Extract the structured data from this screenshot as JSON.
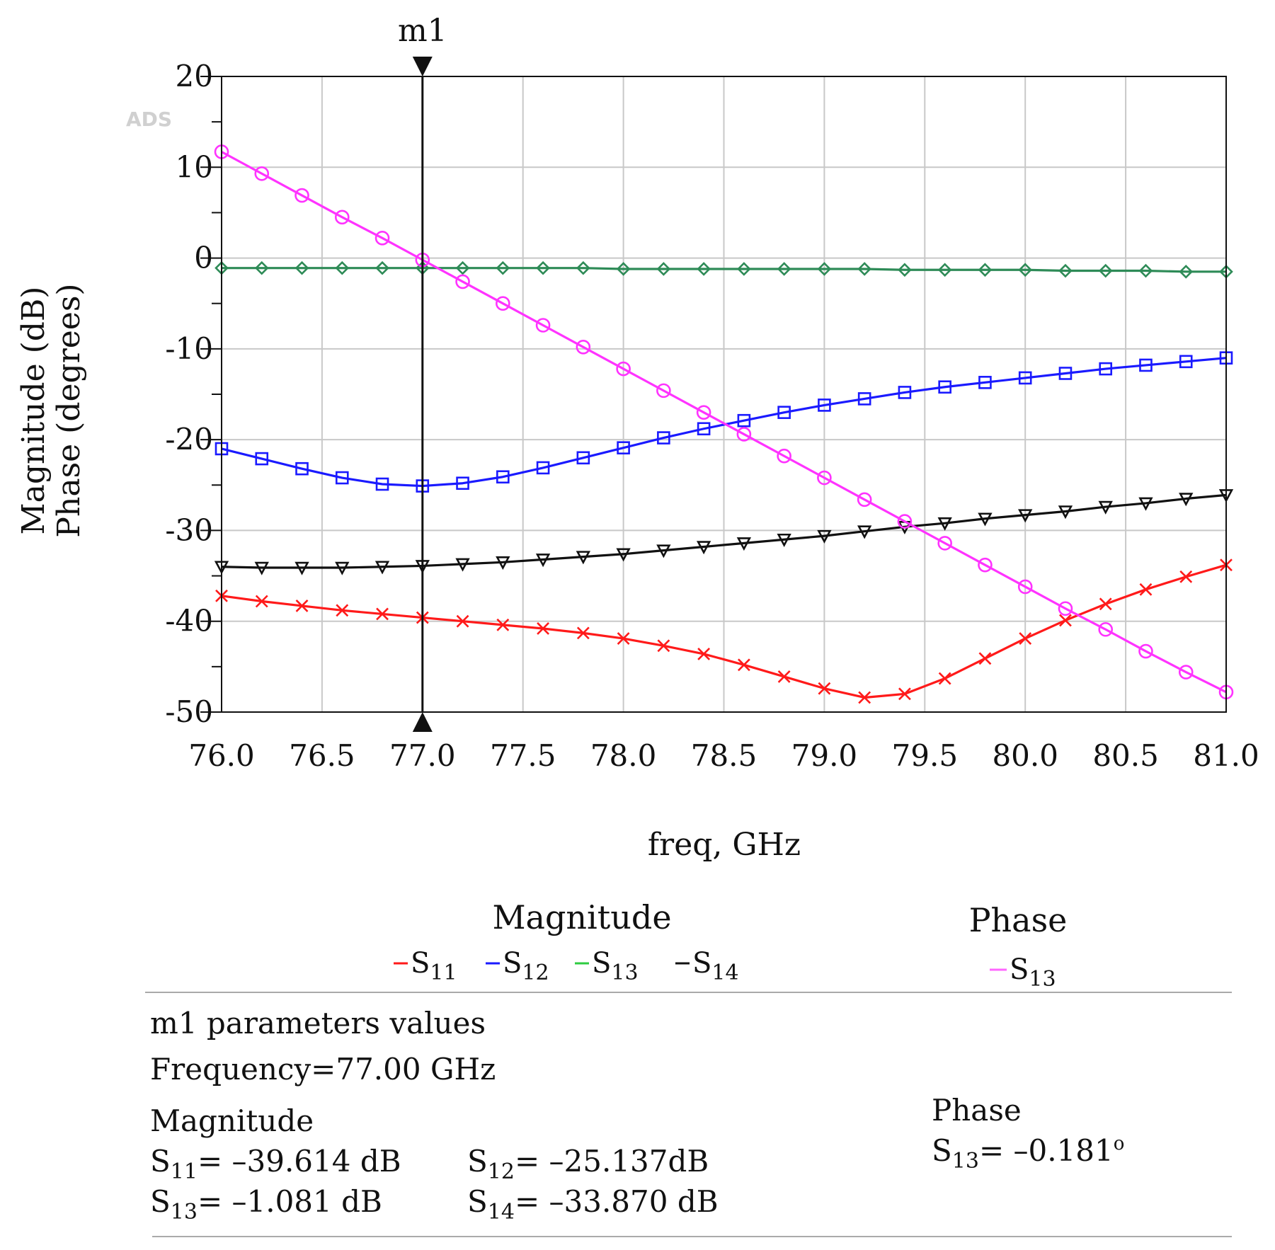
{
  "chart_data": {
    "type": "line",
    "watermark": "ADS",
    "xlabel": "freq, GHz",
    "ylabel_lines": [
      "Magnitude (dB)",
      "Phase (degrees)"
    ],
    "xlim": [
      76.0,
      81.0
    ],
    "ylim": [
      -50,
      20
    ],
    "x_ticks": [
      "76.0",
      "76.5",
      "77.0",
      "77.5",
      "78.0",
      "78.5",
      "79.0",
      "79.5",
      "80.0",
      "80.5",
      "81.0"
    ],
    "y_ticks": [
      "20",
      "10",
      "0",
      "-10",
      "-20",
      "-30",
      "-40",
      "-50"
    ],
    "grid": true,
    "x": [
      76.0,
      76.2,
      76.4,
      76.6,
      76.8,
      77.0,
      77.2,
      77.4,
      77.6,
      77.8,
      78.0,
      78.2,
      78.4,
      78.6,
      78.8,
      79.0,
      79.2,
      79.4,
      79.6,
      79.8,
      80.0,
      80.2,
      80.4,
      80.6,
      80.8,
      81.0
    ],
    "series": [
      {
        "name": "S11",
        "group": "Magnitude",
        "color": "#ff1a1a",
        "marker": "x",
        "values": [
          -37.2,
          -37.8,
          -38.3,
          -38.8,
          -39.2,
          -39.6,
          -40.0,
          -40.4,
          -40.8,
          -41.3,
          -41.9,
          -42.7,
          -43.6,
          -44.8,
          -46.1,
          -47.4,
          -48.4,
          -48.0,
          -46.3,
          -44.1,
          -41.9,
          -39.9,
          -38.1,
          -36.5,
          -35.1,
          -33.8
        ]
      },
      {
        "name": "S12",
        "group": "Magnitude",
        "color": "#1a1aff",
        "marker": "square",
        "values": [
          -21.0,
          -22.1,
          -23.2,
          -24.2,
          -24.9,
          -25.1,
          -24.8,
          -24.1,
          -23.1,
          -22.0,
          -20.9,
          -19.8,
          -18.8,
          -17.9,
          -17.0,
          -16.2,
          -15.5,
          -14.8,
          -14.2,
          -13.7,
          -13.2,
          -12.7,
          -12.2,
          -11.8,
          -11.4,
          -11.0
        ]
      },
      {
        "name": "S13",
        "group": "Magnitude",
        "color": "#2e8b57",
        "marker": "diamond",
        "values": [
          -1.1,
          -1.1,
          -1.1,
          -1.1,
          -1.1,
          -1.1,
          -1.1,
          -1.1,
          -1.1,
          -1.1,
          -1.2,
          -1.2,
          -1.2,
          -1.2,
          -1.2,
          -1.2,
          -1.2,
          -1.3,
          -1.3,
          -1.3,
          -1.3,
          -1.4,
          -1.4,
          -1.4,
          -1.5,
          -1.5
        ]
      },
      {
        "name": "S14",
        "group": "Magnitude",
        "color": "#111111",
        "marker": "triangle-down",
        "values": [
          -34.0,
          -34.1,
          -34.1,
          -34.1,
          -34.0,
          -33.9,
          -33.7,
          -33.5,
          -33.2,
          -32.9,
          -32.6,
          -32.2,
          -31.8,
          -31.4,
          -31.0,
          -30.6,
          -30.1,
          -29.6,
          -29.2,
          -28.7,
          -28.3,
          -27.9,
          -27.4,
          -27.0,
          -26.5,
          -26.1
        ]
      },
      {
        "name": "S13",
        "group": "Phase",
        "color": "#ff33ff",
        "marker": "circle",
        "values": [
          11.7,
          9.3,
          6.9,
          4.5,
          2.2,
          -0.2,
          -2.6,
          -5.0,
          -7.4,
          -9.8,
          -12.2,
          -14.6,
          -17.0,
          -19.4,
          -21.8,
          -24.2,
          -26.6,
          -29.0,
          -31.4,
          -33.8,
          -36.2,
          -38.6,
          -40.9,
          -43.3,
          -45.6,
          -47.8
        ]
      }
    ],
    "marker": {
      "name": "m1",
      "x": 77.0
    }
  },
  "legend": {
    "magnitude_title": "Magnitude",
    "phase_title": "Phase",
    "sub_prefix": "S",
    "magnitude_items": [
      {
        "label": "S11",
        "sub": "11",
        "color": "#ff1a1a"
      },
      {
        "label": "S12",
        "sub": "12",
        "color": "#1a1aff"
      },
      {
        "label": "S13",
        "sub": "13",
        "color": "#2ecc40"
      },
      {
        "label": "S14",
        "sub": "14",
        "color": "#111111"
      }
    ],
    "phase_items": [
      {
        "label": "S13",
        "sub": "13",
        "color": "#ff66ff"
      }
    ]
  },
  "marker_info": {
    "heading": "m1 parameters values",
    "frequency": "Frequency=77.00 GHz",
    "magnitude_title": "Magnitude",
    "phase_title": "Phase",
    "magnitude_values": [
      {
        "param": "S11",
        "sub": "11",
        "value": "= –39.614 dB"
      },
      {
        "param": "S12",
        "sub": "12",
        "value": "= –25.137dB"
      },
      {
        "param": "S13",
        "sub": "13",
        "value": "= –1.081 dB"
      },
      {
        "param": "S14",
        "sub": "14",
        "value": "= –33.870 dB"
      }
    ],
    "phase_values": [
      {
        "param": "S13",
        "sub": "13",
        "value": "= –0.181",
        "unit": "o"
      }
    ]
  }
}
